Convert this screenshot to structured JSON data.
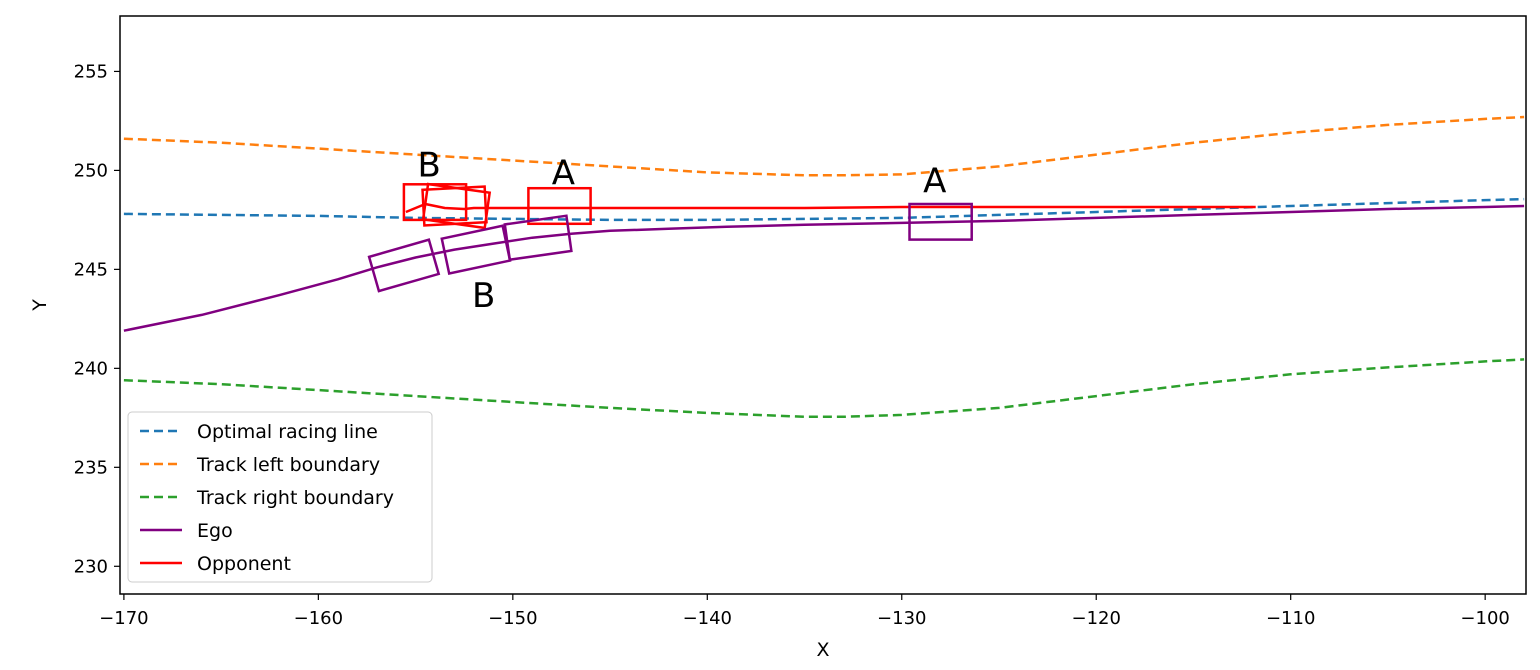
{
  "chart_data": {
    "type": "line",
    "title": "",
    "xlabel": "X",
    "ylabel": "Y",
    "xlim": [
      -170.2,
      -97.9
    ],
    "ylim": [
      228.6,
      257.8
    ],
    "grid": false,
    "legend_position": "lower-left",
    "xticks": [
      -170,
      -160,
      -150,
      -140,
      -130,
      -120,
      -110,
      -100
    ],
    "xtick_labels": [
      "−170",
      "−160",
      "−150",
      "−140",
      "−130",
      "−120",
      "−110",
      "−100"
    ],
    "yticks": [
      230,
      235,
      240,
      245,
      250,
      255
    ],
    "ytick_labels": [
      "230",
      "235",
      "240",
      "245",
      "250",
      "255"
    ],
    "series": [
      {
        "name": "Optimal racing line",
        "color": "#1f77b4",
        "style": "dashed",
        "x": [
          -170,
          -165,
          -160,
          -155,
          -150,
          -145,
          -140,
          -135,
          -130,
          -125,
          -120,
          -115,
          -110,
          -105,
          -100,
          -98
        ],
        "y": [
          247.8,
          247.75,
          247.7,
          247.6,
          247.55,
          247.5,
          247.5,
          247.55,
          247.6,
          247.75,
          247.9,
          248.05,
          248.2,
          248.35,
          248.5,
          248.55
        ]
      },
      {
        "name": "Track left boundary",
        "color": "#ff7f0e",
        "style": "dashed",
        "x": [
          -170,
          -165,
          -160,
          -155,
          -150,
          -145,
          -140,
          -135,
          -133,
          -130,
          -125,
          -120,
          -115,
          -110,
          -105,
          -100,
          -98
        ],
        "y": [
          251.6,
          251.4,
          251.1,
          250.8,
          250.5,
          250.2,
          249.9,
          249.75,
          249.75,
          249.8,
          250.2,
          250.8,
          251.4,
          251.9,
          252.3,
          252.6,
          252.7
        ]
      },
      {
        "name": "Track right boundary",
        "color": "#2ca02c",
        "style": "dashed",
        "x": [
          -170,
          -165,
          -160,
          -155,
          -150,
          -145,
          -140,
          -135,
          -133,
          -130,
          -125,
          -120,
          -115,
          -110,
          -105,
          -100,
          -98
        ],
        "y": [
          239.4,
          239.2,
          238.9,
          238.6,
          238.3,
          238.0,
          237.75,
          237.55,
          237.55,
          237.65,
          238.0,
          238.6,
          239.2,
          239.7,
          240.05,
          240.35,
          240.45
        ]
      },
      {
        "name": "Ego",
        "color": "#800080",
        "style": "solid",
        "x": [
          -170,
          -166,
          -162,
          -159,
          -157,
          -155,
          -153,
          -151,
          -149,
          -147,
          -145,
          -142,
          -139,
          -135,
          -130,
          -125,
          -120,
          -115,
          -110,
          -105,
          -100,
          -98
        ],
        "y": [
          241.9,
          242.7,
          243.7,
          244.5,
          245.1,
          245.6,
          246.0,
          246.3,
          246.6,
          246.8,
          246.95,
          247.05,
          247.15,
          247.25,
          247.35,
          247.45,
          247.6,
          247.75,
          247.9,
          248.05,
          248.15,
          248.2
        ]
      },
      {
        "name": "Opponent",
        "color": "#ff0000",
        "style": "solid",
        "x": [
          -155.5,
          -154.5,
          -153.5,
          -152.5,
          -152.0,
          -150,
          -145,
          -140,
          -135,
          -130,
          -125,
          -120,
          -115,
          -111.8
        ],
        "y": [
          247.9,
          248.3,
          248.1,
          248.05,
          248.1,
          248.1,
          248.1,
          248.1,
          248.1,
          248.15,
          248.15,
          248.15,
          248.15,
          248.15
        ]
      }
    ],
    "vehicle_boxes": [
      {
        "owner": "Opponent",
        "color": "#ff0000",
        "cx": -154.0,
        "cy": 248.4,
        "length": 3.2,
        "width": 1.8,
        "angle_deg": 0
      },
      {
        "owner": "Opponent",
        "color": "#ff0000",
        "cx": -152.9,
        "cy": 248.2,
        "length": 3.2,
        "width": 1.8,
        "angle_deg": -8
      },
      {
        "owner": "Opponent",
        "color": "#ff0000",
        "cx": -153.0,
        "cy": 248.2,
        "length": 3.2,
        "width": 1.8,
        "angle_deg": 3
      },
      {
        "owner": "Opponent",
        "color": "#ff0000",
        "cx": -147.6,
        "cy": 248.2,
        "length": 3.2,
        "width": 1.8,
        "angle_deg": 0
      },
      {
        "owner": "Ego",
        "color": "#800080",
        "cx": -155.6,
        "cy": 245.2,
        "length": 3.2,
        "width": 1.8,
        "angle_deg": 16
      },
      {
        "owner": "Ego",
        "color": "#800080",
        "cx": -151.9,
        "cy": 246.0,
        "length": 3.2,
        "width": 1.8,
        "angle_deg": 12
      },
      {
        "owner": "Ego",
        "color": "#800080",
        "cx": -148.7,
        "cy": 246.6,
        "length": 3.2,
        "width": 1.8,
        "angle_deg": 8
      },
      {
        "owner": "Ego",
        "color": "#800080",
        "cx": -128.0,
        "cy": 247.4,
        "length": 3.2,
        "width": 1.8,
        "angle_deg": 0
      }
    ],
    "annotations": [
      {
        "text": "B",
        "x": -154.3,
        "y": 250.3
      },
      {
        "text": "A",
        "x": -147.4,
        "y": 249.9
      },
      {
        "text": "A",
        "x": -128.3,
        "y": 249.5
      },
      {
        "text": "B",
        "x": -151.5,
        "y": 243.7
      }
    ]
  }
}
